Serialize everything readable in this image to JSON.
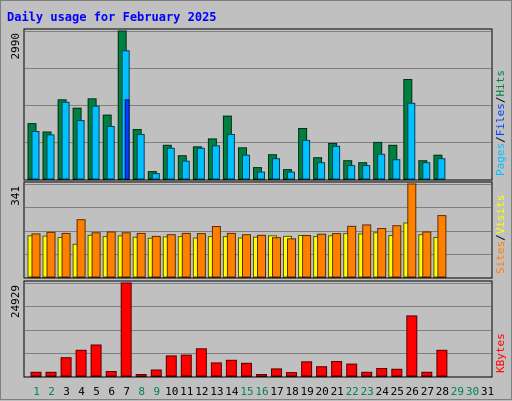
{
  "chart_data": {
    "type": "bar",
    "title": "Daily usage for February 2025",
    "days": [
      "1",
      "2",
      "3",
      "4",
      "5",
      "6",
      "7",
      "8",
      "9",
      "10",
      "11",
      "12",
      "13",
      "14",
      "15",
      "16",
      "17",
      "18",
      "19",
      "20",
      "21",
      "22",
      "23",
      "24",
      "25",
      "26",
      "27",
      "28",
      "29",
      "30",
      "31"
    ],
    "weekend_days": [
      "1",
      "2",
      "8",
      "9",
      "15",
      "16",
      "22",
      "23",
      "29",
      "30"
    ],
    "panels": [
      {
        "id": "hits_files_pages",
        "ymax": 2990,
        "ytick_label": "2990",
        "legend": [
          "Pages",
          "Files",
          "Hits"
        ],
        "series": [
          {
            "name": "Hits",
            "color": "#008040",
            "values": [
              1120,
              950,
              1600,
              1430,
              1620,
              1290,
              2990,
              1000,
              150,
              680,
              470,
              650,
              810,
              1270,
              630,
              230,
              490,
              190,
              1020,
              430,
              720,
              370,
              330,
              740,
              680,
              2010,
              370,
              480,
              0,
              0,
              0
            ]
          },
          {
            "name": "Files",
            "color": "#00c0ff",
            "values": [
              960,
              890,
              1550,
              1180,
              1470,
              1060,
              2590,
              900,
              110,
              620,
              360,
              620,
              670,
              900,
              480,
              140,
              410,
              140,
              780,
              330,
              660,
              270,
              270,
              500,
              390,
              1530,
              330,
              410,
              0,
              0,
              0
            ]
          },
          {
            "name": "Pages",
            "color": "#0040ff",
            "values": [
              0,
              0,
              0,
              0,
              0,
              0,
              1600,
              0,
              0,
              0,
              0,
              0,
              0,
              0,
              0,
              0,
              0,
              0,
              0,
              0,
              0,
              0,
              0,
              0,
              0,
              0,
              0,
              0,
              0,
              0,
              0
            ]
          }
        ]
      },
      {
        "id": "visits_sites",
        "ymax": 341,
        "ytick_label": "341",
        "legend": [
          "Sites",
          "Visits"
        ],
        "series": [
          {
            "name": "Visits",
            "color": "#ffff00",
            "values": [
              151,
              150,
              145,
              120,
              153,
              148,
              151,
              146,
              142,
              147,
              148,
              143,
              148,
              148,
              143,
              146,
              151,
              149,
              152,
              148,
              151,
              159,
              158,
              162,
              152,
              198,
              155,
              145,
              0,
              0,
              0
            ]
          },
          {
            "name": "Sites",
            "color": "#ff8000",
            "values": [
              158,
              164,
              160,
              210,
              162,
              165,
              162,
              160,
              149,
              155,
              160,
              159,
              185,
              160,
              155,
              153,
              144,
              140,
              152,
              157,
              159,
              186,
              191,
              178,
              188,
              341,
              165,
              225,
              0,
              0,
              0
            ]
          }
        ]
      },
      {
        "id": "kbytes",
        "ymax": 24929,
        "ytick_label": "24929",
        "legend": [
          "KBytes"
        ],
        "series": [
          {
            "name": "KBytes",
            "color": "#ff0000",
            "values": [
              1000,
              1000,
              4900,
              6900,
              8300,
              1200,
              24929,
              400,
              1600,
              5400,
              5600,
              7300,
              3500,
              4200,
              3400,
              400,
              1900,
              900,
              3800,
              2500,
              3900,
              3200,
              1000,
              2000,
              1800,
              16100,
              1000,
              6900,
              0,
              0,
              0
            ]
          }
        ]
      }
    ]
  }
}
